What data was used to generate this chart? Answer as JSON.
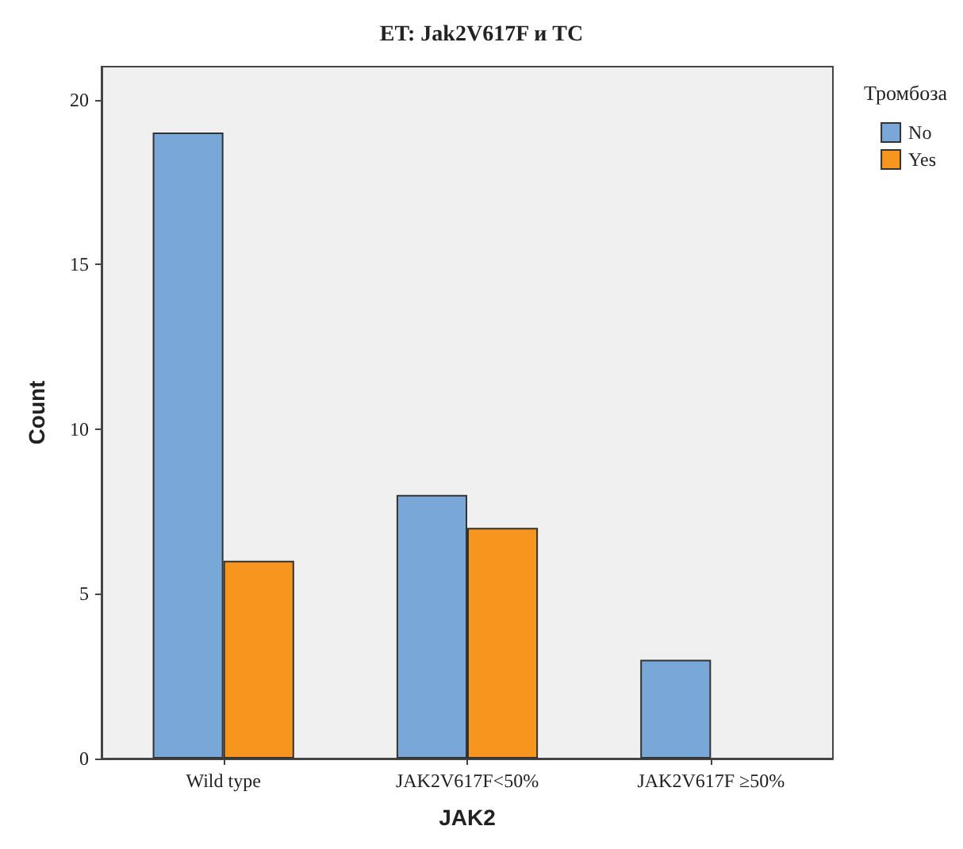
{
  "chart_data": {
    "type": "bar",
    "title": "ET: Jak2V617F и TC",
    "xlabel": "JAK2",
    "ylabel": "Count",
    "legend_title": "Тромбоза",
    "categories": [
      "Wild type",
      "JAK2V617F<50%",
      "JAK2V617F ≥50%"
    ],
    "series": [
      {
        "name": "No",
        "color": "#79a7d8",
        "values": [
          19,
          8,
          3
        ]
      },
      {
        "name": "Yes",
        "color": "#f7961f",
        "values": [
          6,
          7,
          null
        ]
      }
    ],
    "ylim": [
      0,
      21
    ],
    "yticks": [
      0,
      5,
      10,
      15,
      20
    ],
    "grid": false,
    "legend": "top right"
  }
}
